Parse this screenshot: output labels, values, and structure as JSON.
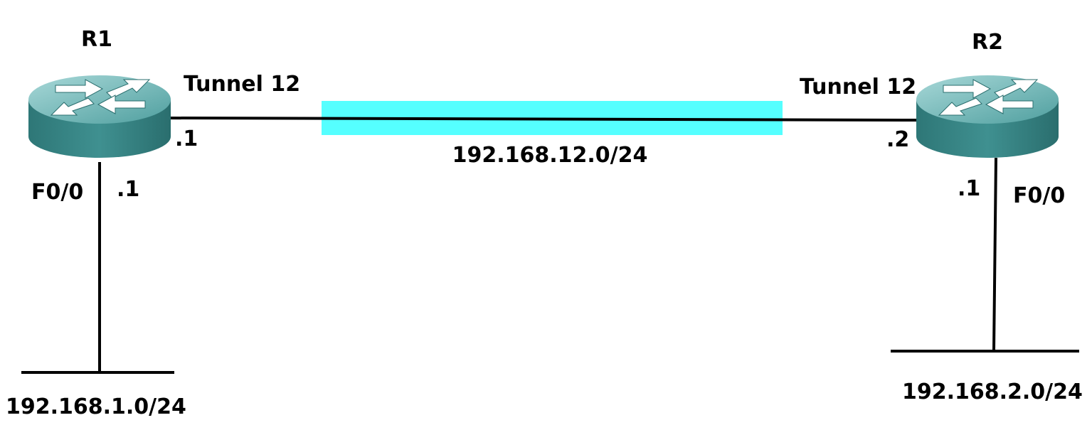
{
  "routers": [
    {
      "name": "R1",
      "tunnel_label": "Tunnel 12",
      "tunnel_ip": ".1",
      "lan_interface": "F0/0",
      "lan_ip": ".1",
      "lan_network": "192.168.1.0/24"
    },
    {
      "name": "R2",
      "tunnel_label": "Tunnel 12",
      "tunnel_ip": ".2",
      "lan_interface": "F0/0",
      "lan_ip": ".1",
      "lan_network": "192.168.2.0/24"
    }
  ],
  "tunnel": {
    "network": "192.168.12.0/24"
  },
  "colors": {
    "router_body": "#3a8a8a",
    "router_top": "#7fbfbf",
    "tunnel_highlight": "#55ffff",
    "link": "#000000"
  },
  "icons": {
    "router": "router-icon"
  }
}
